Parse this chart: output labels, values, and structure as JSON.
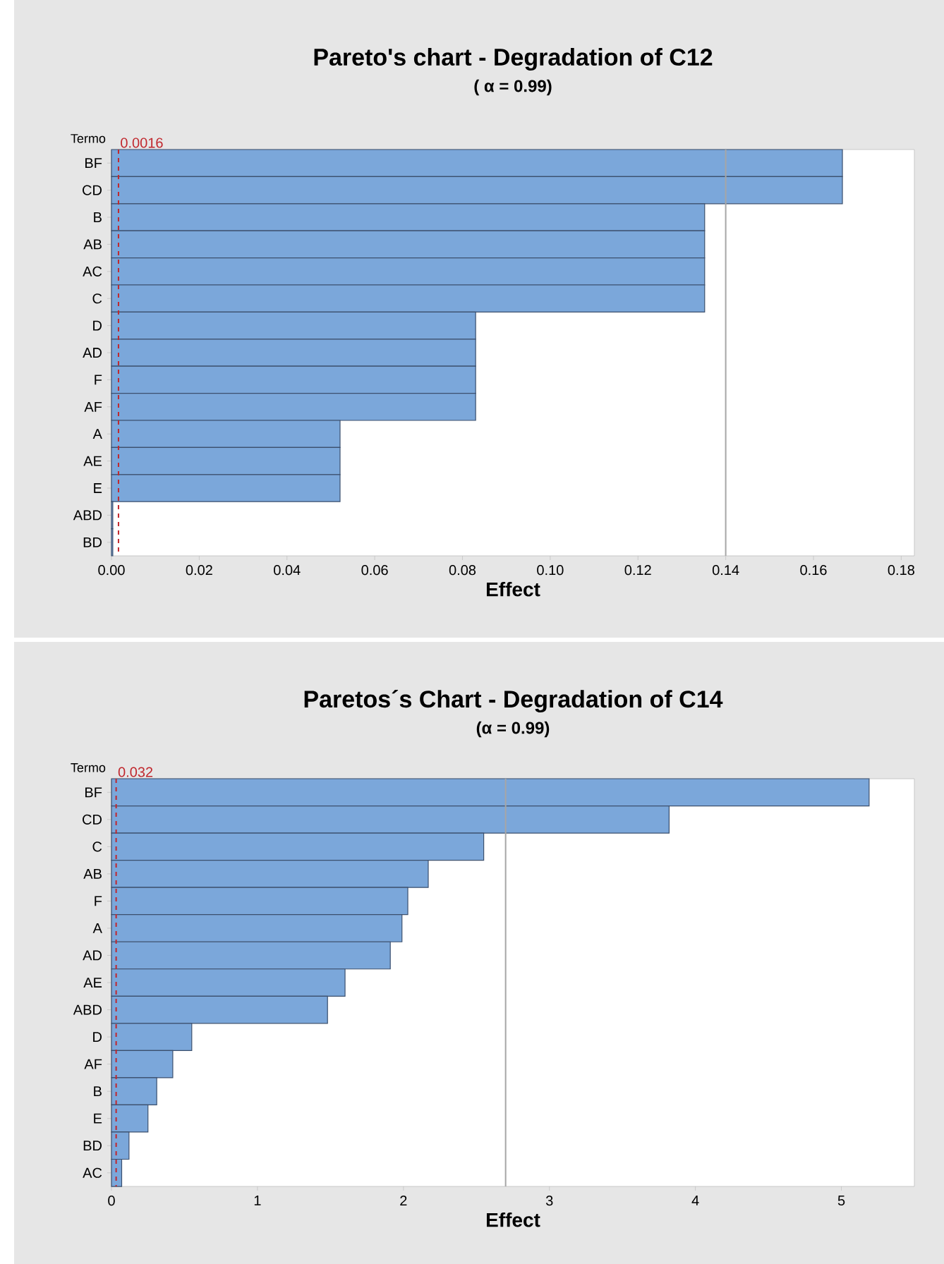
{
  "chart_data": [
    {
      "type": "bar",
      "orientation": "horizontal",
      "title": "Pareto's chart - Degradation of C12",
      "subtitle": "( α = 0.99)",
      "xlabel": "Effect",
      "ylabel": "Termo",
      "categories": [
        "BF",
        "CD",
        "B",
        "AB",
        "AC",
        "C",
        "D",
        "AD",
        "F",
        "AF",
        "A",
        "AE",
        "E",
        "ABD",
        "BD"
      ],
      "values": [
        0.1666,
        0.1666,
        0.1352,
        0.1352,
        0.1352,
        0.1352,
        0.083,
        0.083,
        0.083,
        0.083,
        0.0521,
        0.0521,
        0.0521,
        0.0003,
        0.0003
      ],
      "color": "#7ba7da",
      "xlim": [
        0,
        0.183
      ],
      "xticks": [
        {
          "value": 0,
          "label": "0.00"
        },
        {
          "value": 0.02,
          "label": "0.02"
        },
        {
          "value": 0.04,
          "label": "0.04"
        },
        {
          "value": 0.06,
          "label": "0.06"
        },
        {
          "value": 0.08,
          "label": "0.08"
        },
        {
          "value": 0.1,
          "label": "0.10"
        },
        {
          "value": 0.12,
          "label": "0.12"
        },
        {
          "value": 0.14,
          "label": "0.14"
        },
        {
          "value": 0.16,
          "label": "0.16"
        },
        {
          "value": 0.18,
          "label": "0.18"
        }
      ],
      "ref_lines": [
        {
          "axis": "x",
          "value": 0.0016,
          "label": "0.0016",
          "color": "#c0272d",
          "line_style": "dashed"
        },
        {
          "axis": "x",
          "value": 0.14,
          "color": "#a6a6a6",
          "line_style": "solid"
        }
      ]
    },
    {
      "type": "bar",
      "orientation": "horizontal",
      "title": "Paretos´s Chart - Degradation of C14",
      "subtitle": "(α = 0.99)",
      "xlabel": "Effect",
      "ylabel": "Termo",
      "categories": [
        "BF",
        "CD",
        "C",
        "AB",
        "F",
        "A",
        "AD",
        "AE",
        "ABD",
        "D",
        "AF",
        "B",
        "E",
        "BD",
        "AC"
      ],
      "values": [
        5.19,
        3.82,
        2.55,
        2.17,
        2.03,
        1.99,
        1.91,
        1.6,
        1.48,
        0.55,
        0.42,
        0.31,
        0.25,
        0.12,
        0.07
      ],
      "color": "#7ba7da",
      "xlim": [
        0,
        5.5
      ],
      "xticks": [
        0,
        1,
        2,
        3,
        4,
        5
      ],
      "ref_lines": [
        {
          "axis": "x",
          "value": 0.032,
          "label": "0.032",
          "color": "#c0272d",
          "line_style": "dashed"
        },
        {
          "axis": "x",
          "value": 2.7,
          "color": "#a6a6a6",
          "line_style": "solid"
        }
      ]
    }
  ]
}
